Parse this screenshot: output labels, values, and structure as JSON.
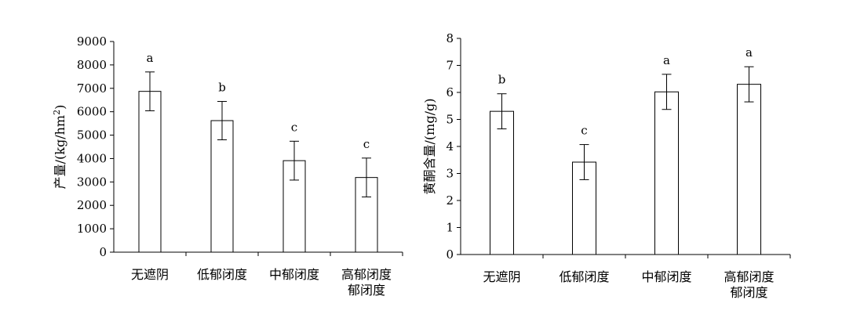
{
  "chart_data": [
    {
      "type": "bar",
      "title": "",
      "xlabel": "",
      "ylabel": "产量/(kg/hm",
      "ylabel_sup": "2",
      "ylabel_close": ")",
      "ylim": [
        0,
        9000
      ],
      "yticks": [
        0,
        1000,
        2000,
        3000,
        4000,
        5000,
        6000,
        7000,
        8000,
        9000
      ],
      "grid": false,
      "categories": [
        [
          "无遮阴"
        ],
        [
          "低郁闭度"
        ],
        [
          "中郁闭度"
        ],
        [
          "高郁闭度",
          "郁闭度"
        ]
      ],
      "values": [
        6870,
        5620,
        3910,
        3190
      ],
      "errors": [
        830,
        820,
        830,
        830
      ],
      "significance": [
        "a",
        "b",
        "c",
        "c"
      ]
    },
    {
      "type": "bar",
      "title": "",
      "xlabel": "",
      "ylabel": "黄酮含量/(mg/g)",
      "ylim": [
        0,
        8
      ],
      "yticks": [
        0,
        1,
        2,
        3,
        4,
        5,
        6,
        7,
        8
      ],
      "grid": false,
      "categories": [
        [
          "无遮阴"
        ],
        [
          "低郁闭度"
        ],
        [
          "中郁闭度"
        ],
        [
          "高郁闭度",
          "郁闭度"
        ]
      ],
      "values": [
        5.3,
        3.42,
        6.02,
        6.3
      ],
      "errors": [
        0.65,
        0.65,
        0.65,
        0.65
      ],
      "significance": [
        "b",
        "c",
        "a",
        "a"
      ]
    }
  ]
}
